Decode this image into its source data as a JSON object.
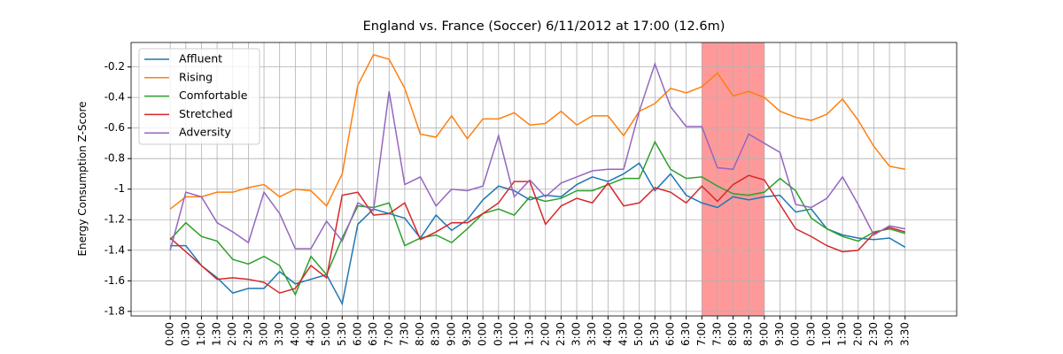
{
  "chart_data": {
    "type": "line",
    "title": "England vs. France (Soccer) 6/11/2012 at 17:00 (12.6m)",
    "ylabel": "Energy Consumption Z-Score",
    "categories": [
      "0:00",
      "0:30",
      "1:00",
      "1:30",
      "2:00",
      "2:30",
      "3:00",
      "3:30",
      "4:00",
      "4:30",
      "5:00",
      "5:30",
      "6:00",
      "6:30",
      "7:00",
      "7:30",
      "8:00",
      "8:30",
      "9:00",
      "9:30",
      "0:00",
      "0:30",
      "1:00",
      "1:30",
      "2:00",
      "2:30",
      "3:00",
      "3:30",
      "4:00",
      "4:30",
      "5:00",
      "5:30",
      "6:00",
      "6:30",
      "7:00",
      "7:30",
      "8:00",
      "8:30",
      "9:00",
      "9:30",
      "0:00",
      "0:30",
      "1:00",
      "1:30",
      "2:00",
      "2:30",
      "3:00",
      "3:30"
    ],
    "series": [
      {
        "name": "Affluent",
        "color": "#1f77b4",
        "values": [
          -1.37,
          -1.37,
          -1.5,
          -1.58,
          -1.68,
          -1.65,
          -1.65,
          -1.54,
          -1.62,
          -1.59,
          -1.56,
          -1.75,
          -1.23,
          -1.13,
          -1.16,
          -1.19,
          -1.32,
          -1.17,
          -1.27,
          -1.2,
          -1.07,
          -0.98,
          -1.01,
          -1.07,
          -1.04,
          -1.05,
          -0.97,
          -0.92,
          -0.95,
          -0.9,
          -0.83,
          -1.01,
          -0.9,
          -1.04,
          -1.09,
          -1.12,
          -1.05,
          -1.07,
          -1.05,
          -1.04,
          -1.15,
          -1.13,
          -1.26,
          -1.3,
          -1.32,
          -1.33,
          -1.32,
          -1.38
        ]
      },
      {
        "name": "Rising",
        "color": "#ff7f0e",
        "values": [
          -1.13,
          -1.05,
          -1.05,
          -1.02,
          -1.02,
          -0.99,
          -0.97,
          -1.05,
          -1.0,
          -1.01,
          -1.11,
          -0.9,
          -0.32,
          -0.12,
          -0.15,
          -0.34,
          -0.64,
          -0.66,
          -0.52,
          -0.67,
          -0.54,
          -0.54,
          -0.5,
          -0.58,
          -0.57,
          -0.49,
          -0.58,
          -0.52,
          -0.52,
          -0.65,
          -0.49,
          -0.44,
          -0.34,
          -0.37,
          -0.33,
          -0.24,
          -0.39,
          -0.36,
          -0.4,
          -0.49,
          -0.53,
          -0.55,
          -0.51,
          -0.41,
          -0.55,
          -0.72,
          -0.85,
          -0.87
        ]
      },
      {
        "name": "Comfortable",
        "color": "#2ca02c",
        "values": [
          -1.33,
          -1.22,
          -1.31,
          -1.34,
          -1.46,
          -1.49,
          -1.44,
          -1.5,
          -1.69,
          -1.44,
          -1.56,
          -1.32,
          -1.11,
          -1.12,
          -1.09,
          -1.37,
          -1.32,
          -1.3,
          -1.35,
          -1.26,
          -1.16,
          -1.13,
          -1.17,
          -1.05,
          -1.08,
          -1.06,
          -1.01,
          -1.01,
          -0.97,
          -0.93,
          -0.93,
          -0.69,
          -0.87,
          -0.93,
          -0.92,
          -0.98,
          -1.03,
          -1.04,
          -1.02,
          -0.93,
          -1.01,
          -1.19,
          -1.26,
          -1.31,
          -1.34,
          -1.28,
          -1.26,
          -1.29
        ]
      },
      {
        "name": "Stretched",
        "color": "#d62728",
        "values": [
          -1.32,
          -1.41,
          -1.5,
          -1.59,
          -1.58,
          -1.59,
          -1.61,
          -1.68,
          -1.65,
          -1.5,
          -1.58,
          -1.04,
          -1.02,
          -1.17,
          -1.16,
          -1.09,
          -1.33,
          -1.28,
          -1.22,
          -1.22,
          -1.16,
          -1.09,
          -0.95,
          -0.95,
          -1.23,
          -1.11,
          -1.06,
          -1.09,
          -0.96,
          -1.11,
          -1.09,
          -0.99,
          -1.02,
          -1.09,
          -0.98,
          -1.08,
          -0.97,
          -0.91,
          -0.94,
          -1.1,
          -1.26,
          -1.31,
          -1.37,
          -1.41,
          -1.4,
          -1.29,
          -1.25,
          -1.28
        ]
      },
      {
        "name": "Adversity",
        "color": "#9467bd",
        "values": [
          -1.4,
          -1.02,
          -1.05,
          -1.22,
          -1.28,
          -1.35,
          -1.02,
          -1.16,
          -1.39,
          -1.39,
          -1.21,
          -1.34,
          -1.09,
          -1.14,
          -0.36,
          -0.97,
          -0.92,
          -1.11,
          -1.0,
          -1.01,
          -0.98,
          -0.65,
          -1.05,
          -0.94,
          -1.05,
          -0.96,
          -0.92,
          -0.88,
          -0.87,
          -0.87,
          -0.49,
          -0.18,
          -0.46,
          -0.59,
          -0.59,
          -0.86,
          -0.87,
          -0.64,
          -0.7,
          -0.76,
          -1.1,
          -1.12,
          -1.06,
          -0.92,
          -1.1,
          -1.3,
          -1.24,
          -1.26
        ]
      }
    ],
    "highlight_span": [
      34,
      38
    ],
    "highlight_color": "#ff9999",
    "ylim": [
      -1.83,
      -0.04
    ],
    "yticks": [
      -1.8,
      -1.6,
      -1.4,
      -1.2,
      -1.0,
      -0.8,
      -0.6,
      -0.4,
      -0.2
    ],
    "grid": true,
    "legend": "upper left"
  }
}
